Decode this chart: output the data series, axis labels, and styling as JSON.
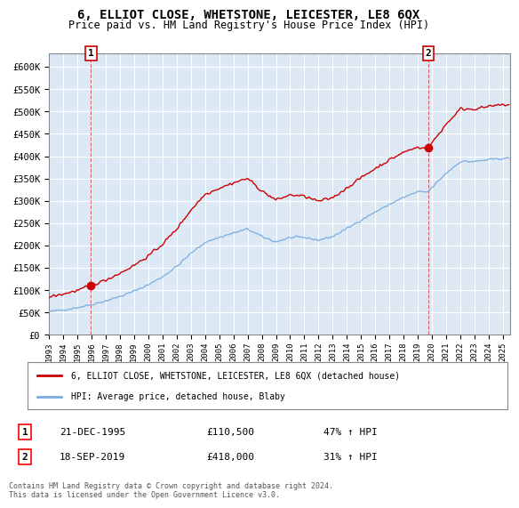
{
  "title": "6, ELLIOT CLOSE, WHETSTONE, LEICESTER, LE8 6QX",
  "subtitle": "Price paid vs. HM Land Registry's House Price Index (HPI)",
  "xlim_start": 1993.0,
  "xlim_end": 2025.5,
  "ylim": [
    0,
    630000
  ],
  "yticks": [
    0,
    50000,
    100000,
    150000,
    200000,
    250000,
    300000,
    350000,
    400000,
    450000,
    500000,
    550000,
    600000
  ],
  "ytick_labels": [
    "£0",
    "£50K",
    "£100K",
    "£150K",
    "£200K",
    "£250K",
    "£300K",
    "£350K",
    "£400K",
    "£450K",
    "£500K",
    "£550K",
    "£600K"
  ],
  "xtick_years": [
    1993,
    1994,
    1995,
    1996,
    1997,
    1998,
    1999,
    2000,
    2001,
    2002,
    2003,
    2004,
    2005,
    2006,
    2007,
    2008,
    2009,
    2010,
    2011,
    2012,
    2013,
    2014,
    2015,
    2016,
    2017,
    2018,
    2019,
    2020,
    2021,
    2022,
    2023,
    2024,
    2025
  ],
  "sale1_x": 1995.97,
  "sale1_y": 110500,
  "sale2_x": 2019.72,
  "sale2_y": 418000,
  "sale1_date": "21-DEC-1995",
  "sale1_price": "£110,500",
  "sale1_hpi": "47% ↑ HPI",
  "sale2_date": "18-SEP-2019",
  "sale2_price": "£418,000",
  "sale2_hpi": "31% ↑ HPI",
  "red_color": "#cc0000",
  "blue_color": "#7aabdc",
  "bg_color": "#ffffff",
  "plot_bg": "#dce9f5",
  "grid_color": "#ffffff",
  "legend_line1": "6, ELLIOT CLOSE, WHETSTONE, LEICESTER, LE8 6QX (detached house)",
  "legend_line2": "HPI: Average price, detached house, Blaby",
  "footer": "Contains HM Land Registry data © Crown copyright and database right 2024.\nThis data is licensed under the Open Government Licence v3.0."
}
